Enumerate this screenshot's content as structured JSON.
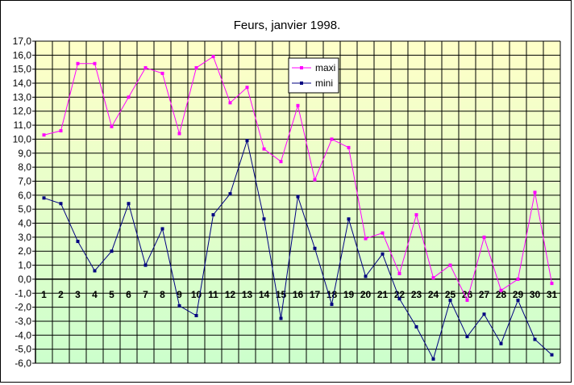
{
  "chart_data": {
    "type": "line",
    "title": "Feurs, janvier 1998.",
    "xlabel": "",
    "ylabel": "",
    "categories": [
      "1",
      "2",
      "3",
      "4",
      "5",
      "6",
      "7",
      "8",
      "9",
      "10",
      "11",
      "12",
      "13",
      "14",
      "15",
      "16",
      "17",
      "18",
      "19",
      "20",
      "21",
      "22",
      "23",
      "24",
      "25",
      "26",
      "27",
      "28",
      "29",
      "30",
      "31"
    ],
    "ylim": [
      -6,
      17
    ],
    "ytick_step": 1,
    "ytick_labels": [
      "17,0",
      "16,0",
      "15,0",
      "14,0",
      "13,0",
      "12,0",
      "11,0",
      "10,0",
      "9,0",
      "8,0",
      "7,0",
      "6,0",
      "5,0",
      "4,0",
      "3,0",
      "2,0",
      "1,0",
      "0,0",
      "-1,0",
      "-2,0",
      "-3,0",
      "-4,0",
      "-5,0",
      "-6,0"
    ],
    "grid": true,
    "legend_position": "top-center",
    "background_gradient": [
      "#ffffc8",
      "#ccffcc"
    ],
    "series": [
      {
        "name": "maxi",
        "color": "#ff00ff",
        "values": [
          10.3,
          10.6,
          15.4,
          15.4,
          10.9,
          13.0,
          15.1,
          14.7,
          10.4,
          15.1,
          15.9,
          12.6,
          13.7,
          9.3,
          8.4,
          12.4,
          7.1,
          10.0,
          9.4,
          2.9,
          3.3,
          0.4,
          4.6,
          0.1,
          1.0,
          -1.5,
          3.0,
          -0.8,
          0.0,
          6.2,
          -0.3
        ]
      },
      {
        "name": "mini",
        "color": "#000080",
        "values": [
          5.8,
          5.4,
          2.7,
          0.6,
          2.0,
          5.4,
          1.0,
          3.6,
          -1.9,
          -2.6,
          4.6,
          6.1,
          9.9,
          4.3,
          -2.8,
          5.9,
          2.2,
          -1.8,
          4.3,
          0.2,
          1.8,
          -1.4,
          -3.4,
          -5.7,
          -1.5,
          -4.1,
          -2.5,
          -4.6,
          -1.5,
          -4.3,
          -5.4
        ]
      }
    ]
  }
}
